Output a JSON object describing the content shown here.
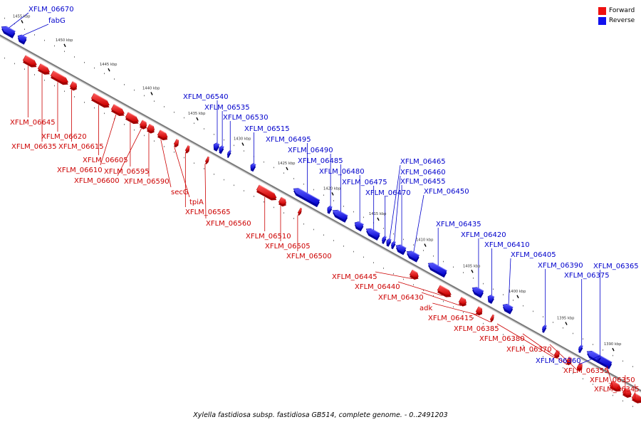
{
  "caption": "Xylella fastidiosa subsp. fastidiosa GB514, complete genome. - 0..2491203",
  "legend": {
    "forward_label": "Forward",
    "reverse_label": "Reverse",
    "forward_color": "#ee1111",
    "reverse_color": "#1111ee"
  },
  "scale_labels": [
    "1455 kbp",
    "1450 kbp",
    "1445 kbp",
    "1440 kbp",
    "1435 kbp",
    "1430 kbp",
    "1425 kbp",
    "1420 kbp",
    "1415 kbp",
    "1410 kbp",
    "1405 kbp",
    "1400 kbp",
    "1395 kbp",
    "1390 kbp"
  ],
  "genes": [
    {
      "name": "XFLM_06670",
      "strand": "reverse"
    },
    {
      "name": "fabG",
      "strand": "reverse"
    },
    {
      "name": "XFLM_06645",
      "strand": "forward"
    },
    {
      "name": "XFLM_06620",
      "strand": "forward"
    },
    {
      "name": "XFLM_06635",
      "strand": "forward"
    },
    {
      "name": "XFLM_06615",
      "strand": "forward"
    },
    {
      "name": "XFLM_06605",
      "strand": "forward"
    },
    {
      "name": "XFLM_06610",
      "strand": "forward"
    },
    {
      "name": "XFLM_06595",
      "strand": "forward"
    },
    {
      "name": "XFLM_06600",
      "strand": "forward"
    },
    {
      "name": "XFLM_06590",
      "strand": "forward"
    },
    {
      "name": "secG",
      "strand": "forward"
    },
    {
      "name": "tpiA",
      "strand": "forward"
    },
    {
      "name": "XFLM_06565",
      "strand": "forward"
    },
    {
      "name": "XFLM_06560",
      "strand": "forward"
    },
    {
      "name": "XFLM_06510",
      "strand": "forward"
    },
    {
      "name": "XFLM_06505",
      "strand": "forward"
    },
    {
      "name": "XFLM_06500",
      "strand": "forward"
    },
    {
      "name": "XFLM_06540",
      "strand": "reverse"
    },
    {
      "name": "XFLM_06535",
      "strand": "reverse"
    },
    {
      "name": "XFLM_06530",
      "strand": "reverse"
    },
    {
      "name": "XFLM_06515",
      "strand": "reverse"
    },
    {
      "name": "XFLM_06495",
      "strand": "reverse"
    },
    {
      "name": "XFLM_06490",
      "strand": "reverse"
    },
    {
      "name": "XFLM_06485",
      "strand": "reverse"
    },
    {
      "name": "XFLM_06480",
      "strand": "reverse"
    },
    {
      "name": "XFLM_06475",
      "strand": "reverse"
    },
    {
      "name": "XFLM_06470",
      "strand": "reverse"
    },
    {
      "name": "XFLM_06465",
      "strand": "reverse"
    },
    {
      "name": "XFLM_06460",
      "strand": "reverse"
    },
    {
      "name": "XFLM_06455",
      "strand": "reverse"
    },
    {
      "name": "XFLM_06450",
      "strand": "reverse"
    },
    {
      "name": "XFLM_06435",
      "strand": "reverse"
    },
    {
      "name": "XFLM_06420",
      "strand": "reverse"
    },
    {
      "name": "XFLM_06410",
      "strand": "reverse"
    },
    {
      "name": "XFLM_06405",
      "strand": "reverse"
    },
    {
      "name": "XFLM_06390",
      "strand": "reverse"
    },
    {
      "name": "XFLM_06375",
      "strand": "reverse"
    },
    {
      "name": "XFLM_06365",
      "strand": "reverse"
    },
    {
      "name": "XFLM_06445",
      "strand": "forward"
    },
    {
      "name": "XFLM_06440",
      "strand": "forward"
    },
    {
      "name": "XFLM_06430",
      "strand": "forward"
    },
    {
      "name": "adk",
      "strand": "forward"
    },
    {
      "name": "XFLM_06415",
      "strand": "forward"
    },
    {
      "name": "XFLM_06385",
      "strand": "forward"
    },
    {
      "name": "XFLM_06380",
      "strand": "forward"
    },
    {
      "name": "XFLM_06370",
      "strand": "forward"
    },
    {
      "name": "XFLM_06360",
      "strand": "reverse"
    },
    {
      "name": "XFLM_06355",
      "strand": "forward"
    },
    {
      "name": "XFLM_06350",
      "strand": "forward"
    },
    {
      "name": "XFLM_06345",
      "strand": "forward"
    }
  ]
}
